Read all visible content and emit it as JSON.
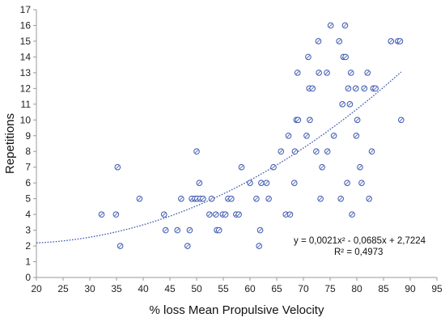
{
  "chart_data": {
    "type": "scatter",
    "title": "",
    "xlabel": "% loss Mean Propulsive Velocity",
    "ylabel": "Repetitions",
    "xlim": [
      20,
      95
    ],
    "ylim": [
      0,
      17
    ],
    "xticks": [
      "20",
      "25",
      "30",
      "35",
      "40",
      "45",
      "50",
      "55",
      "60",
      "65",
      "70",
      "75",
      "80",
      "85",
      "90",
      "95"
    ],
    "yticks": [
      "0",
      "1",
      "2",
      "3",
      "4",
      "5",
      "6",
      "7",
      "8",
      "9",
      "10",
      "11",
      "12",
      "13",
      "14",
      "15",
      "16",
      "17"
    ],
    "grid": false,
    "legend": "none",
    "marker_color": "#3a56b0",
    "trend_color": "#3a56b0",
    "series": [
      {
        "marker": "open-circle",
        "points": [
          [
            32.2,
            4
          ],
          [
            34.9,
            4
          ],
          [
            35.2,
            7
          ],
          [
            35.7,
            2
          ],
          [
            39.3,
            5
          ],
          [
            43.9,
            4
          ],
          [
            44.2,
            3
          ],
          [
            46.4,
            3
          ],
          [
            47.1,
            5
          ],
          [
            48.3,
            2
          ],
          [
            48.7,
            3
          ],
          [
            49.1,
            5
          ],
          [
            49.7,
            5
          ],
          [
            50.0,
            8
          ],
          [
            50.1,
            5
          ],
          [
            50.5,
            6
          ],
          [
            50.7,
            5
          ],
          [
            51.2,
            5
          ],
          [
            52.4,
            4
          ],
          [
            52.8,
            5
          ],
          [
            53.6,
            4
          ],
          [
            53.8,
            3
          ],
          [
            54.2,
            3
          ],
          [
            54.9,
            4
          ],
          [
            55.4,
            4
          ],
          [
            55.9,
            5
          ],
          [
            56.5,
            5
          ],
          [
            57.4,
            4
          ],
          [
            57.9,
            4
          ],
          [
            58.4,
            7
          ],
          [
            60.0,
            6
          ],
          [
            61.2,
            5
          ],
          [
            61.7,
            2
          ],
          [
            61.9,
            3
          ],
          [
            62.1,
            6
          ],
          [
            63.1,
            6
          ],
          [
            63.5,
            5
          ],
          [
            64.4,
            7
          ],
          [
            65.8,
            8
          ],
          [
            66.7,
            4
          ],
          [
            67.2,
            9
          ],
          [
            67.5,
            4
          ],
          [
            68.3,
            6
          ],
          [
            68.4,
            8
          ],
          [
            68.7,
            10
          ],
          [
            68.9,
            13
          ],
          [
            69.0,
            10
          ],
          [
            70.6,
            9
          ],
          [
            70.9,
            14
          ],
          [
            71.1,
            12
          ],
          [
            71.2,
            10
          ],
          [
            71.7,
            12
          ],
          [
            72.4,
            8
          ],
          [
            72.8,
            15
          ],
          [
            72.9,
            13
          ],
          [
            73.2,
            5
          ],
          [
            73.5,
            7
          ],
          [
            74.4,
            13
          ],
          [
            74.5,
            8
          ],
          [
            75.1,
            16
          ],
          [
            75.7,
            9
          ],
          [
            76.7,
            15
          ],
          [
            77.0,
            5
          ],
          [
            77.3,
            11
          ],
          [
            77.5,
            14
          ],
          [
            77.8,
            16
          ],
          [
            77.9,
            14
          ],
          [
            78.2,
            6
          ],
          [
            78.4,
            12
          ],
          [
            78.7,
            11
          ],
          [
            78.9,
            13
          ],
          [
            79.1,
            4
          ],
          [
            79.8,
            12
          ],
          [
            79.9,
            9
          ],
          [
            80.1,
            10
          ],
          [
            80.6,
            7
          ],
          [
            80.9,
            6
          ],
          [
            81.4,
            12
          ],
          [
            82.0,
            13
          ],
          [
            82.3,
            5
          ],
          [
            82.8,
            8
          ],
          [
            83.1,
            12
          ],
          [
            83.5,
            12
          ],
          [
            86.4,
            15
          ],
          [
            87.7,
            15
          ],
          [
            88.1,
            15
          ],
          [
            88.3,
            10
          ]
        ]
      }
    ],
    "trendline": {
      "type": "polynomial",
      "coefficients": [
        0.0021,
        -0.0685,
        2.7224
      ],
      "x_range": [
        20,
        88.3
      ],
      "equation_text": "y = 0,0021x² - 0,0685x + 2,7224",
      "r2_text": "R² = 0,4973"
    }
  }
}
